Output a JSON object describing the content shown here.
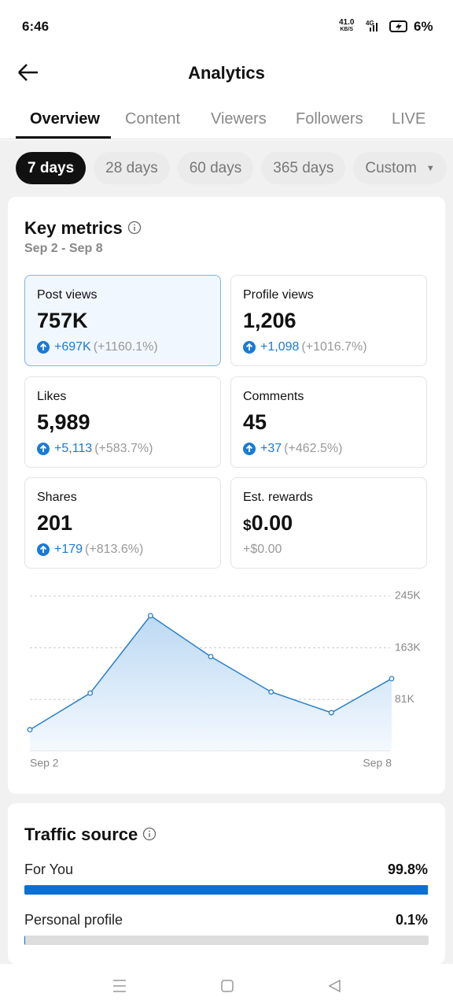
{
  "status_bar": {
    "time": "6:46",
    "speed": "41.0",
    "speed_unit": "KB/S",
    "network": "4G",
    "battery": "6%"
  },
  "header": {
    "title": "Analytics"
  },
  "tabs": [
    "Overview",
    "Content",
    "Viewers",
    "Followers",
    "LIVE"
  ],
  "date_ranges": [
    "7 days",
    "28 days",
    "60 days",
    "365 days",
    "Custom"
  ],
  "key_metrics": {
    "title": "Key metrics",
    "date_range": "Sep 2 - Sep 8",
    "cards": [
      {
        "label": "Post views",
        "value": "757K",
        "change": "+697K",
        "percent": "(+1160.1%)"
      },
      {
        "label": "Profile views",
        "value": "1,206",
        "change": "+1,098",
        "percent": "(+1016.7%)"
      },
      {
        "label": "Likes",
        "value": "5,989",
        "change": "+5,113",
        "percent": "(+583.7%)"
      },
      {
        "label": "Comments",
        "value": "45",
        "change": "+37",
        "percent": "(+462.5%)"
      },
      {
        "label": "Shares",
        "value": "201",
        "change": "+179",
        "percent": "(+813.6%)"
      },
      {
        "label": "Est. rewards",
        "currency": "$",
        "value": "0.00",
        "change": "+$0.00"
      }
    ]
  },
  "chart_data": {
    "type": "line",
    "categories": [
      "Sep 2",
      null,
      null,
      null,
      null,
      null,
      "Sep 8"
    ],
    "series": [
      {
        "color": "#2a7fc9",
        "values": [
          33000,
          91000,
          214000,
          149000,
          93000,
          60000,
          114000
        ]
      }
    ],
    "ylim": [
      0,
      245000
    ],
    "yticks": [
      {
        "value": 81000,
        "label": "81K"
      },
      {
        "value": 163000,
        "label": "163K"
      },
      {
        "value": 245000,
        "label": "245K"
      }
    ]
  },
  "traffic_source": {
    "title": "Traffic source",
    "items": [
      {
        "name": "For You",
        "value": 99.8,
        "value_label": "99.8%"
      },
      {
        "name": "Personal profile",
        "value": 0.1,
        "value_label": "0.1%"
      }
    ]
  }
}
